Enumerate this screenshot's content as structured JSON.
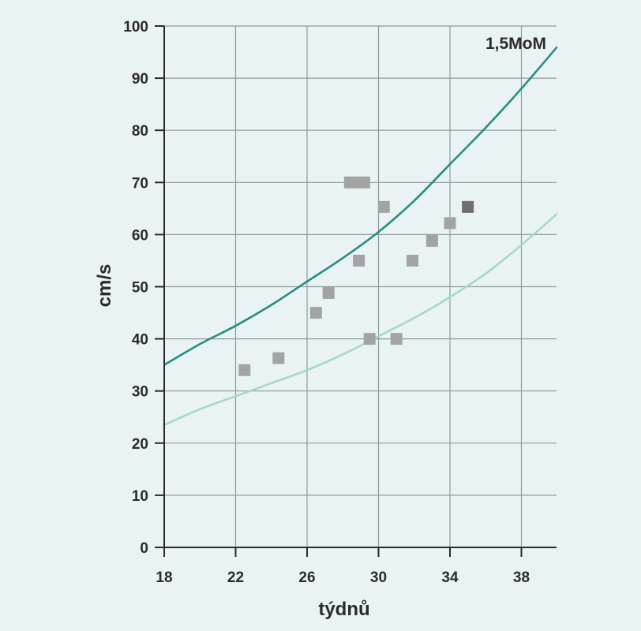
{
  "chart_data": {
    "type": "scatter",
    "xlabel": "týdnů",
    "ylabel": "cm/s",
    "xlim": [
      18,
      40
    ],
    "ylim": [
      0,
      100
    ],
    "xticks": [
      18,
      22,
      26,
      30,
      34,
      38
    ],
    "yticks": [
      0,
      10,
      20,
      30,
      40,
      50,
      60,
      70,
      80,
      90,
      100
    ],
    "grid": true,
    "annotation": "1,5MoM",
    "curves": [
      {
        "color": "#2a8c82",
        "x": [
          18,
          20,
          22,
          24,
          26,
          28,
          30,
          32,
          34,
          36,
          38,
          40
        ],
        "y": [
          35,
          39,
          42.5,
          46.5,
          51,
          55.5,
          60.5,
          66.5,
          73.5,
          80.5,
          88,
          96
        ]
      },
      {
        "color": "#a6d6d0",
        "x": [
          18,
          20,
          22,
          24,
          26,
          28,
          30,
          32,
          34,
          36,
          38,
          40
        ],
        "y": [
          23.5,
          26.5,
          29,
          31.5,
          34,
          37,
          40.5,
          44,
          48,
          52.5,
          58,
          64
        ]
      }
    ],
    "points": [
      {
        "x": 22.5,
        "y": 34,
        "color": "#a3a3a3"
      },
      {
        "x": 24.4,
        "y": 36.3,
        "color": "#a3a3a3"
      },
      {
        "x": 26.5,
        "y": 45,
        "color": "#a3a3a3"
      },
      {
        "x": 27.2,
        "y": 48.8,
        "color": "#a3a3a3"
      },
      {
        "x": 28.4,
        "y": 70,
        "color": "#a3a3a3"
      },
      {
        "x": 28.9,
        "y": 70,
        "color": "#a3a3a3"
      },
      {
        "x": 29.2,
        "y": 70,
        "color": "#a3a3a3"
      },
      {
        "x": 28.9,
        "y": 55,
        "color": "#a3a3a3"
      },
      {
        "x": 29.5,
        "y": 40,
        "color": "#a3a3a3"
      },
      {
        "x": 30.3,
        "y": 65.3,
        "color": "#a3a3a3"
      },
      {
        "x": 31.0,
        "y": 40,
        "color": "#a3a3a3"
      },
      {
        "x": 31.9,
        "y": 55,
        "color": "#a3a3a3"
      },
      {
        "x": 33.0,
        "y": 58.8,
        "color": "#a3a3a3"
      },
      {
        "x": 34.0,
        "y": 62.2,
        "color": "#a3a3a3"
      },
      {
        "x": 35.0,
        "y": 65.3,
        "color": "#6f6f6f"
      }
    ]
  }
}
